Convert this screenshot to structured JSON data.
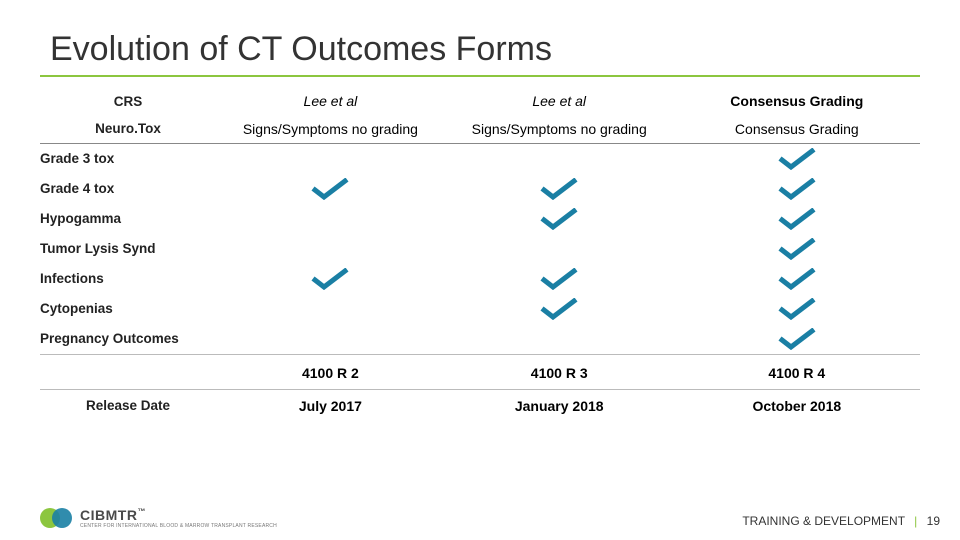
{
  "title": "Evolution of CT Outcomes Forms",
  "columns": {
    "r2": {
      "crs": "Lee et al",
      "neurotox": "Signs/Symptoms no grading",
      "version": "4100 R 2",
      "release": "July 2017"
    },
    "r3": {
      "crs": "Lee et al",
      "neurotox": "Signs/Symptoms no grading",
      "version": "4100 R 3",
      "release": "January 2018"
    },
    "r4": {
      "crs": "Consensus Grading",
      "neurotox": "Consensus Grading",
      "version": "4100 R 4",
      "release": "October 2018"
    }
  },
  "row_labels": {
    "crs": "CRS",
    "neurotox": "Neuro.Tox",
    "grade3": "Grade 3 tox",
    "grade4": "Grade 4 tox",
    "hypogamma": "Hypogamma",
    "tls": "Tumor Lysis Synd",
    "infections": "Infections",
    "cytopenias": "Cytopenias",
    "pregnancy": "Pregnancy Outcomes",
    "release_date": "Release Date"
  },
  "checks": {
    "grade3": {
      "r2": false,
      "r3": false,
      "r4": true
    },
    "grade4": {
      "r2": true,
      "r3": true,
      "r4": true
    },
    "hypogamma": {
      "r2": false,
      "r3": true,
      "r4": true
    },
    "tls": {
      "r2": false,
      "r3": false,
      "r4": true
    },
    "infections": {
      "r2": true,
      "r3": true,
      "r4": true
    },
    "cytopenias": {
      "r2": false,
      "r3": true,
      "r4": true
    },
    "pregnancy": {
      "r2": false,
      "r3": false,
      "r4": true
    }
  },
  "check_color": "#1a7fa4",
  "footer": {
    "label": "TRAINING & DEVELOPMENT",
    "page": "19"
  },
  "logo": {
    "name": "CIBMTR",
    "tm": "™",
    "sub": "CENTER FOR INTERNATIONAL BLOOD & MARROW TRANSPLANT RESEARCH"
  }
}
